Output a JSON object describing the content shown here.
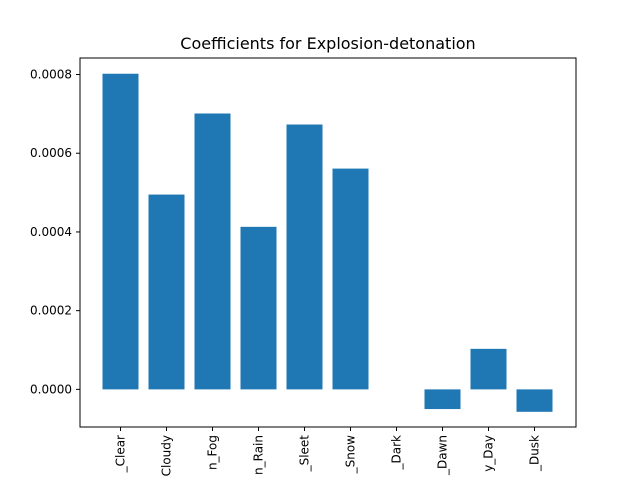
{
  "chart_data": {
    "type": "bar",
    "title": "Coefficients for Explosion-detonation",
    "xlabel": "",
    "ylabel": "",
    "categories": [
      "_Clear",
      "Cloudy",
      "n_Fog",
      "n_Rain",
      "_Sleet",
      "_Snow",
      "_Dark",
      "_Dawn",
      "y_Day",
      "_Dusk"
    ],
    "values": [
      0.000802,
      0.000495,
      0.000701,
      0.000413,
      0.000673,
      0.000561,
      0.0,
      -5e-05,
      0.000103,
      -5.7e-05
    ],
    "ylim": [
      -9.56e-05,
      0.000842
    ],
    "yticks": [
      "0.0000",
      "0.0002",
      "0.0004",
      "0.0006",
      "0.0008"
    ],
    "ytick_values": [
      0,
      0.0002,
      0.0004,
      0.0006,
      0.0008
    ],
    "grid": false,
    "legend": "none",
    "bar_color": "#1f77b4"
  }
}
